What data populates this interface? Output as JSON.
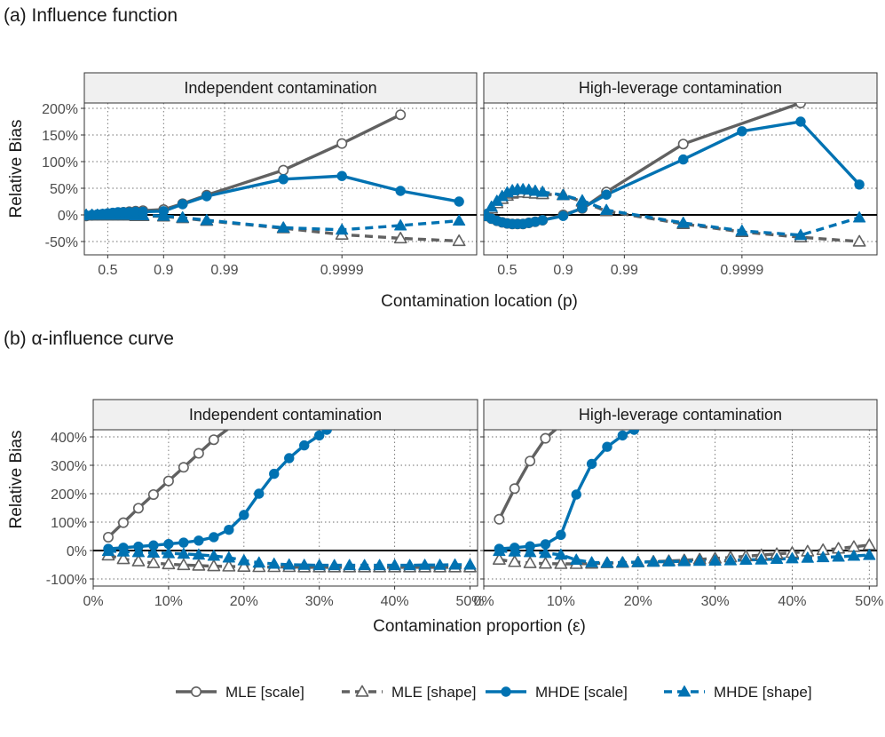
{
  "figure": {
    "section_a_title": "(a) Influence function",
    "section_b_title": "(b) α-influence curve"
  },
  "colors": {
    "mle": "#616161",
    "mhde": "#0072B2",
    "strip_bg": "#f0f0f0",
    "grid": "#6e6e6e"
  },
  "legend": {
    "entries": [
      {
        "label": "MLE [scale]",
        "color": "#616161",
        "marker": "circle-open",
        "linestyle": "solid"
      },
      {
        "label": "MLE [shape]",
        "color": "#616161",
        "marker": "triangle-open",
        "linestyle": "dashed"
      },
      {
        "label": "MHDE [scale]",
        "color": "#0072B2",
        "marker": "circle-filled",
        "linestyle": "solid"
      },
      {
        "label": "MHDE [shape]",
        "color": "#0072B2",
        "marker": "triangle-filled",
        "linestyle": "dashed"
      }
    ]
  },
  "chart_data": [
    {
      "type": "line",
      "panel": "a",
      "title": "Independent contamination",
      "xlabel": "Contamination location (p)",
      "ylabel": "Relative Bias",
      "x_scale": "logit",
      "x_ticks": [
        "0.5",
        "0.9",
        "0.99",
        "0.9999"
      ],
      "y_ticks": [
        "-50%",
        "0%",
        "50%",
        "100%",
        "150%",
        "200%"
      ],
      "ylim": [
        "-75%",
        "210%"
      ],
      "series": [
        {
          "name": "MLE [scale]",
          "x": [
            0.3,
            0.35,
            0.4,
            0.45,
            0.5,
            0.55,
            0.6,
            0.65,
            0.7,
            0.75,
            0.8,
            0.9,
            0.95,
            0.98,
            0.999,
            0.9999,
            0.99999
          ],
          "y": [
            "-2%",
            "-1%",
            "0%",
            "1%",
            "2%",
            "3%",
            "4%",
            "5%",
            "6%",
            "7%",
            "8%",
            "10%",
            "21%",
            "37%",
            "84%",
            "134%",
            "188%"
          ]
        },
        {
          "name": "MLE [shape]",
          "x": [
            0.3,
            0.35,
            0.4,
            0.45,
            0.5,
            0.55,
            0.6,
            0.65,
            0.7,
            0.75,
            0.8,
            0.9,
            0.95,
            0.98,
            0.999,
            0.9999,
            0.99999,
            0.999999
          ],
          "y": [
            "-1%",
            "-1%",
            "-1%",
            "-1%",
            "-1%",
            "-1%",
            "-1%",
            "-1%",
            "-1%",
            "-2%",
            "-2%",
            "-3%",
            "-6%",
            "-11%",
            "-25%",
            "-37%",
            "-44%",
            "-49%"
          ]
        },
        {
          "name": "MHDE [scale]",
          "x": [
            0.3,
            0.35,
            0.4,
            0.45,
            0.5,
            0.55,
            0.6,
            0.65,
            0.7,
            0.75,
            0.8,
            0.9,
            0.95,
            0.98,
            0.999,
            0.9999,
            0.99999,
            0.999999
          ],
          "y": [
            "-1%",
            "0%",
            "1%",
            "2%",
            "3%",
            "4%",
            "5%",
            "5%",
            "5%",
            "6%",
            "6%",
            "7%",
            "20%",
            "35%",
            "67%",
            "73%",
            "45%",
            "25%"
          ]
        },
        {
          "name": "MHDE [shape]",
          "x": [
            0.3,
            0.35,
            0.4,
            0.45,
            0.5,
            0.55,
            0.6,
            0.65,
            0.7,
            0.75,
            0.8,
            0.9,
            0.95,
            0.98,
            0.999,
            0.9999,
            0.99999,
            0.999999
          ],
          "y": [
            "0%",
            "0%",
            "0%",
            "0%",
            "0%",
            "0%",
            "0%",
            "0%",
            "0%",
            "-1%",
            "-1%",
            "-2%",
            "-5%",
            "-10%",
            "-24%",
            "-28%",
            "-20%",
            "-11%"
          ]
        }
      ]
    },
    {
      "type": "line",
      "panel": "a",
      "title": "High-leverage contamination",
      "xlabel": "Contamination location (p)",
      "ylabel": "Relative Bias",
      "x_scale": "logit",
      "x_ticks": [
        "0.5",
        "0.9",
        "0.99",
        "0.9999"
      ],
      "y_ticks": [
        "-50%",
        "0%",
        "50%",
        "100%",
        "150%",
        "200%"
      ],
      "ylim": [
        "-75%",
        "210%"
      ],
      "series": [
        {
          "name": "MLE [scale]",
          "x": [
            0.3,
            0.35,
            0.4,
            0.45,
            0.5,
            0.55,
            0.6,
            0.65,
            0.7,
            0.75,
            0.8,
            0.9,
            0.95,
            0.98,
            0.999,
            0.99999
          ],
          "y": [
            "-2%",
            "-7%",
            "-11%",
            "-14%",
            "-16%",
            "-17%",
            "-17%",
            "-17%",
            "-15%",
            "-13%",
            "-10%",
            "0%",
            "12%",
            "43%",
            "133%",
            "210%"
          ]
        },
        {
          "name": "MLE [shape]",
          "x": [
            0.3,
            0.35,
            0.4,
            0.45,
            0.5,
            0.55,
            0.6,
            0.65,
            0.7,
            0.75,
            0.8,
            0.9,
            0.95,
            0.98,
            0.999,
            0.9999,
            0.99999,
            0.999999
          ],
          "y": [
            "-1%",
            "12%",
            "22%",
            "30%",
            "36%",
            "40%",
            "42%",
            "42%",
            "41%",
            "40%",
            "39%",
            "37%",
            "25%",
            "7%",
            "-17%",
            "-32%",
            "-42%",
            "-50%"
          ]
        },
        {
          "name": "MHDE [scale]",
          "x": [
            0.3,
            0.35,
            0.4,
            0.45,
            0.5,
            0.55,
            0.6,
            0.65,
            0.7,
            0.75,
            0.8,
            0.9,
            0.95,
            0.98,
            0.999,
            0.9999,
            0.99999,
            0.999999
          ],
          "y": [
            "-2%",
            "-7%",
            "-11%",
            "-14%",
            "-16%",
            "-17%",
            "-17%",
            "-17%",
            "-15%",
            "-13%",
            "-10%",
            "-2%",
            "13%",
            "38%",
            "104%",
            "157%",
            "175%",
            "57%"
          ]
        },
        {
          "name": "MHDE [shape]",
          "x": [
            0.3,
            0.35,
            0.4,
            0.45,
            0.5,
            0.55,
            0.6,
            0.65,
            0.7,
            0.75,
            0.8,
            0.9,
            0.95,
            0.98,
            0.999,
            0.9999,
            0.99999,
            0.999999
          ],
          "y": [
            "0%",
            "15%",
            "26%",
            "35%",
            "42%",
            "46%",
            "48%",
            "48%",
            "47%",
            "45%",
            "43%",
            "37%",
            "27%",
            "9%",
            "-15%",
            "-30%",
            "-38%",
            "-5%"
          ]
        }
      ]
    },
    {
      "type": "line",
      "panel": "b",
      "title": "Independent contamination",
      "xlabel": "Contamination proportion (ε)",
      "ylabel": "Relative Bias",
      "x_ticks": [
        "0%",
        "10%",
        "20%",
        "30%",
        "40%",
        "50%"
      ],
      "y_ticks": [
        "-100%",
        "0%",
        "100%",
        "200%",
        "300%",
        "400%"
      ],
      "xlim": [
        "0%",
        "51%"
      ],
      "ylim": [
        "-125%",
        "425%"
      ],
      "series": [
        {
          "name": "MLE [scale]",
          "x": [
            "2%",
            "4%",
            "6%",
            "8%",
            "10%",
            "12%",
            "14%",
            "16%",
            "18%"
          ],
          "y": [
            "47%",
            "98%",
            "149%",
            "197%",
            "245%",
            "293%",
            "342%",
            "390%",
            "430%"
          ]
        },
        {
          "name": "MLE [shape]",
          "x": [
            "2%",
            "4%",
            "6%",
            "8%",
            "10%",
            "12%",
            "14%",
            "16%",
            "18%",
            "20%",
            "22%",
            "24%",
            "26%",
            "28%",
            "30%",
            "32%",
            "34%",
            "36%",
            "38%",
            "40%",
            "42%",
            "44%",
            "46%",
            "48%",
            "50%"
          ],
          "y": [
            "-17%",
            "-30%",
            "-38%",
            "-44%",
            "-48%",
            "-51%",
            "-53%",
            "-55%",
            "-56%",
            "-57%",
            "-58%",
            "-58%",
            "-58%",
            "-59%",
            "-59%",
            "-59%",
            "-59%",
            "-59%",
            "-59%",
            "-59%",
            "-59%",
            "-59%",
            "-59%",
            "-59%",
            "-59%"
          ]
        },
        {
          "name": "MHDE [scale]",
          "x": [
            "2%",
            "4%",
            "6%",
            "8%",
            "10%",
            "12%",
            "14%",
            "16%",
            "18%",
            "20%",
            "22%",
            "24%",
            "26%",
            "28%",
            "30%",
            "31%"
          ],
          "y": [
            "6%",
            "10%",
            "14%",
            "18%",
            "23%",
            "28%",
            "35%",
            "47%",
            "73%",
            "125%",
            "200%",
            "270%",
            "325%",
            "370%",
            "405%",
            "425%"
          ]
        },
        {
          "name": "MHDE [shape]",
          "x": [
            "2%",
            "4%",
            "6%",
            "8%",
            "10%",
            "12%",
            "14%",
            "16%",
            "18%",
            "20%",
            "22%",
            "24%",
            "26%",
            "28%",
            "30%",
            "32%",
            "34%",
            "36%",
            "38%",
            "40%",
            "42%",
            "44%",
            "46%",
            "48%",
            "50%"
          ],
          "y": [
            "-2%",
            "-4%",
            "-6%",
            "-8%",
            "-10%",
            "-12%",
            "-15%",
            "-19%",
            "-25%",
            "-35%",
            "-43%",
            "-47%",
            "-50%",
            "-51%",
            "-52%",
            "-52%",
            "-52%",
            "-52%",
            "-52%",
            "-52%",
            "-52%",
            "-51%",
            "-51%",
            "-50%",
            "-50%"
          ]
        }
      ]
    },
    {
      "type": "line",
      "panel": "b",
      "title": "High-leverage contamination",
      "xlabel": "Contamination proportion (ε)",
      "ylabel": "Relative Bias",
      "x_ticks": [
        "0%",
        "10%",
        "20%",
        "30%",
        "40%",
        "50%"
      ],
      "y_ticks": [
        "-100%",
        "0%",
        "100%",
        "200%",
        "300%",
        "400%"
      ],
      "xlim": [
        "0%",
        "51%"
      ],
      "ylim": [
        "-125%",
        "425%"
      ],
      "series": [
        {
          "name": "MLE [scale]",
          "x": [
            "2%",
            "4%",
            "6%",
            "8%",
            "9.5%"
          ],
          "y": [
            "110%",
            "218%",
            "315%",
            "395%",
            "430%"
          ]
        },
        {
          "name": "MLE [shape]",
          "x": [
            "2%",
            "4%",
            "6%",
            "8%",
            "10%",
            "12%",
            "14%",
            "16%",
            "18%",
            "20%",
            "22%",
            "24%",
            "26%",
            "28%",
            "30%",
            "32%",
            "34%",
            "36%",
            "38%",
            "40%",
            "42%",
            "44%",
            "46%",
            "48%",
            "50%"
          ],
          "y": [
            "-32%",
            "-40%",
            "-44%",
            "-46%",
            "-47%",
            "-47%",
            "-46%",
            "-44%",
            "-43%",
            "-41%",
            "-39%",
            "-37%",
            "-34%",
            "-31%",
            "-28%",
            "-24%",
            "-20%",
            "-16%",
            "-12%",
            "-8%",
            "-3%",
            "2%",
            "7%",
            "13%",
            "19%"
          ]
        },
        {
          "name": "MHDE [scale]",
          "x": [
            "2%",
            "4%",
            "6%",
            "8%",
            "10%",
            "12%",
            "14%",
            "16%",
            "18%",
            "19.5%"
          ],
          "y": [
            "6%",
            "10%",
            "15%",
            "22%",
            "55%",
            "197%",
            "305%",
            "365%",
            "405%",
            "425%"
          ]
        },
        {
          "name": "MHDE [shape]",
          "x": [
            "2%",
            "4%",
            "6%",
            "8%",
            "10%",
            "12%",
            "14%",
            "16%",
            "18%",
            "20%",
            "22%",
            "24%",
            "26%",
            "28%",
            "30%",
            "32%",
            "34%",
            "36%",
            "38%",
            "40%",
            "42%",
            "44%",
            "46%",
            "48%",
            "50%"
          ],
          "y": [
            "-2%",
            "-4%",
            "-6%",
            "-9%",
            "-15%",
            "-33%",
            "-42%",
            "-43%",
            "-42%",
            "-41%",
            "-40%",
            "-39%",
            "-38%",
            "-37%",
            "-36%",
            "-35%",
            "-33%",
            "-32%",
            "-30%",
            "-28%",
            "-26%",
            "-24%",
            "-22%",
            "-19%",
            "-16%"
          ]
        }
      ]
    }
  ]
}
